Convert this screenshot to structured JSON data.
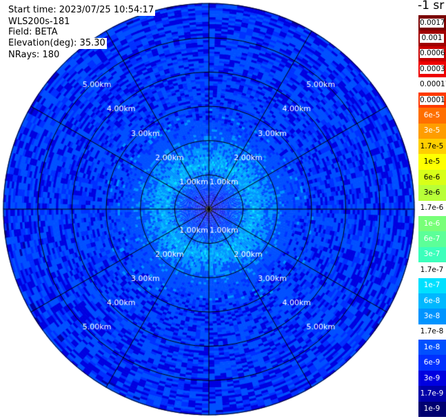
{
  "header": {
    "start_time": "Start time: 2023/07/25 10:54:17",
    "instrument": "WLS200s-181",
    "field": "Field: BETA",
    "elevation": "Elevation(deg): 35.30",
    "nrays": "NRays: 180"
  },
  "colorbar": {
    "unit_label": "-1 sr",
    "levels": [
      {
        "label": "0.0017",
        "color": "#7a0000",
        "text": "#000000",
        "boxed": true
      },
      {
        "label": "0.001",
        "color": "#a00000",
        "text": "#000000",
        "boxed": true
      },
      {
        "label": "0.0006",
        "color": "#c80000",
        "text": "#000000",
        "boxed": true
      },
      {
        "label": "0.0003",
        "color": "#ee0000",
        "text": "#000000",
        "boxed": true
      },
      {
        "label": "0.00017",
        "color": "#ffffff",
        "text": "#000000",
        "boxed": false
      },
      {
        "label": "0.0001",
        "color": "#ff3a00",
        "text": "#000000",
        "boxed": true
      },
      {
        "label": "6e-5",
        "color": "#ff6f00",
        "text": "#ffffff",
        "boxed": false
      },
      {
        "label": "3e-5",
        "color": "#ff9d00",
        "text": "#ffffff",
        "boxed": false
      },
      {
        "label": "1.7e-5",
        "color": "#ffcf00",
        "text": "#000000",
        "boxed": false
      },
      {
        "label": "1e-5",
        "color": "#ffff00",
        "text": "#000000",
        "boxed": false
      },
      {
        "label": "6e-6",
        "color": "#d8ff18",
        "text": "#000000",
        "boxed": false
      },
      {
        "label": "3e-6",
        "color": "#b8ff38",
        "text": "#000000",
        "boxed": false
      },
      {
        "label": "1.7e-6",
        "color": "#ffffff",
        "text": "#000000",
        "boxed": false
      },
      {
        "label": "1e-6",
        "color": "#78ff78",
        "text": "#ffffff",
        "boxed": false
      },
      {
        "label": "6e-7",
        "color": "#5cff98",
        "text": "#ffffff",
        "boxed": false
      },
      {
        "label": "3e-7",
        "color": "#3cffbb",
        "text": "#ffffff",
        "boxed": false
      },
      {
        "label": "1.7e-7",
        "color": "#ffffff",
        "text": "#000000",
        "boxed": false
      },
      {
        "label": "1e-7",
        "color": "#00e0ff",
        "text": "#ffffff",
        "boxed": false
      },
      {
        "label": "6e-8",
        "color": "#00b8ff",
        "text": "#ffffff",
        "boxed": false
      },
      {
        "label": "3e-8",
        "color": "#0094ff",
        "text": "#ffffff",
        "boxed": false
      },
      {
        "label": "1.7e-8",
        "color": "#ffffff",
        "text": "#000000",
        "boxed": false
      },
      {
        "label": "1e-8",
        "color": "#0050ff",
        "text": "#ffffff",
        "boxed": false
      },
      {
        "label": "6e-9",
        "color": "#0030ff",
        "text": "#ffffff",
        "boxed": false
      },
      {
        "label": "3e-9",
        "color": "#0000e0",
        "text": "#ffffff",
        "boxed": false
      },
      {
        "label": "1.7e-9",
        "color": "#0000a8",
        "text": "#ffffff",
        "boxed": false
      },
      {
        "label": "1e-9",
        "color": "#000070",
        "text": "#ffffff",
        "boxed": false
      }
    ]
  },
  "chart_data": {
    "type": "heatmap",
    "projection": "polar-ppi",
    "max_range_km": 6.0,
    "range_rings_km": [
      1,
      2,
      3,
      4,
      5
    ],
    "ring_labels": [
      "1.00km",
      "2.00km",
      "3.00km",
      "4.00km",
      "5.00km"
    ],
    "spoke_angles_deg": [
      0,
      30,
      60,
      90,
      120,
      150,
      180,
      210,
      240,
      270,
      300,
      330
    ],
    "field": "BETA",
    "radial_profile_log10": [
      {
        "range_km": 0.0,
        "value": -8.5
      },
      {
        "range_km": 0.6,
        "value": -7.9
      },
      {
        "range_km": 1.3,
        "value": -7.2
      },
      {
        "range_km": 1.8,
        "value": -7.55
      },
      {
        "range_km": 2.5,
        "value": -7.9
      },
      {
        "range_km": 3.5,
        "value": -8.0
      },
      {
        "range_km": 5.0,
        "value": -8.05
      },
      {
        "range_km": 6.0,
        "value": -8.1
      }
    ]
  }
}
